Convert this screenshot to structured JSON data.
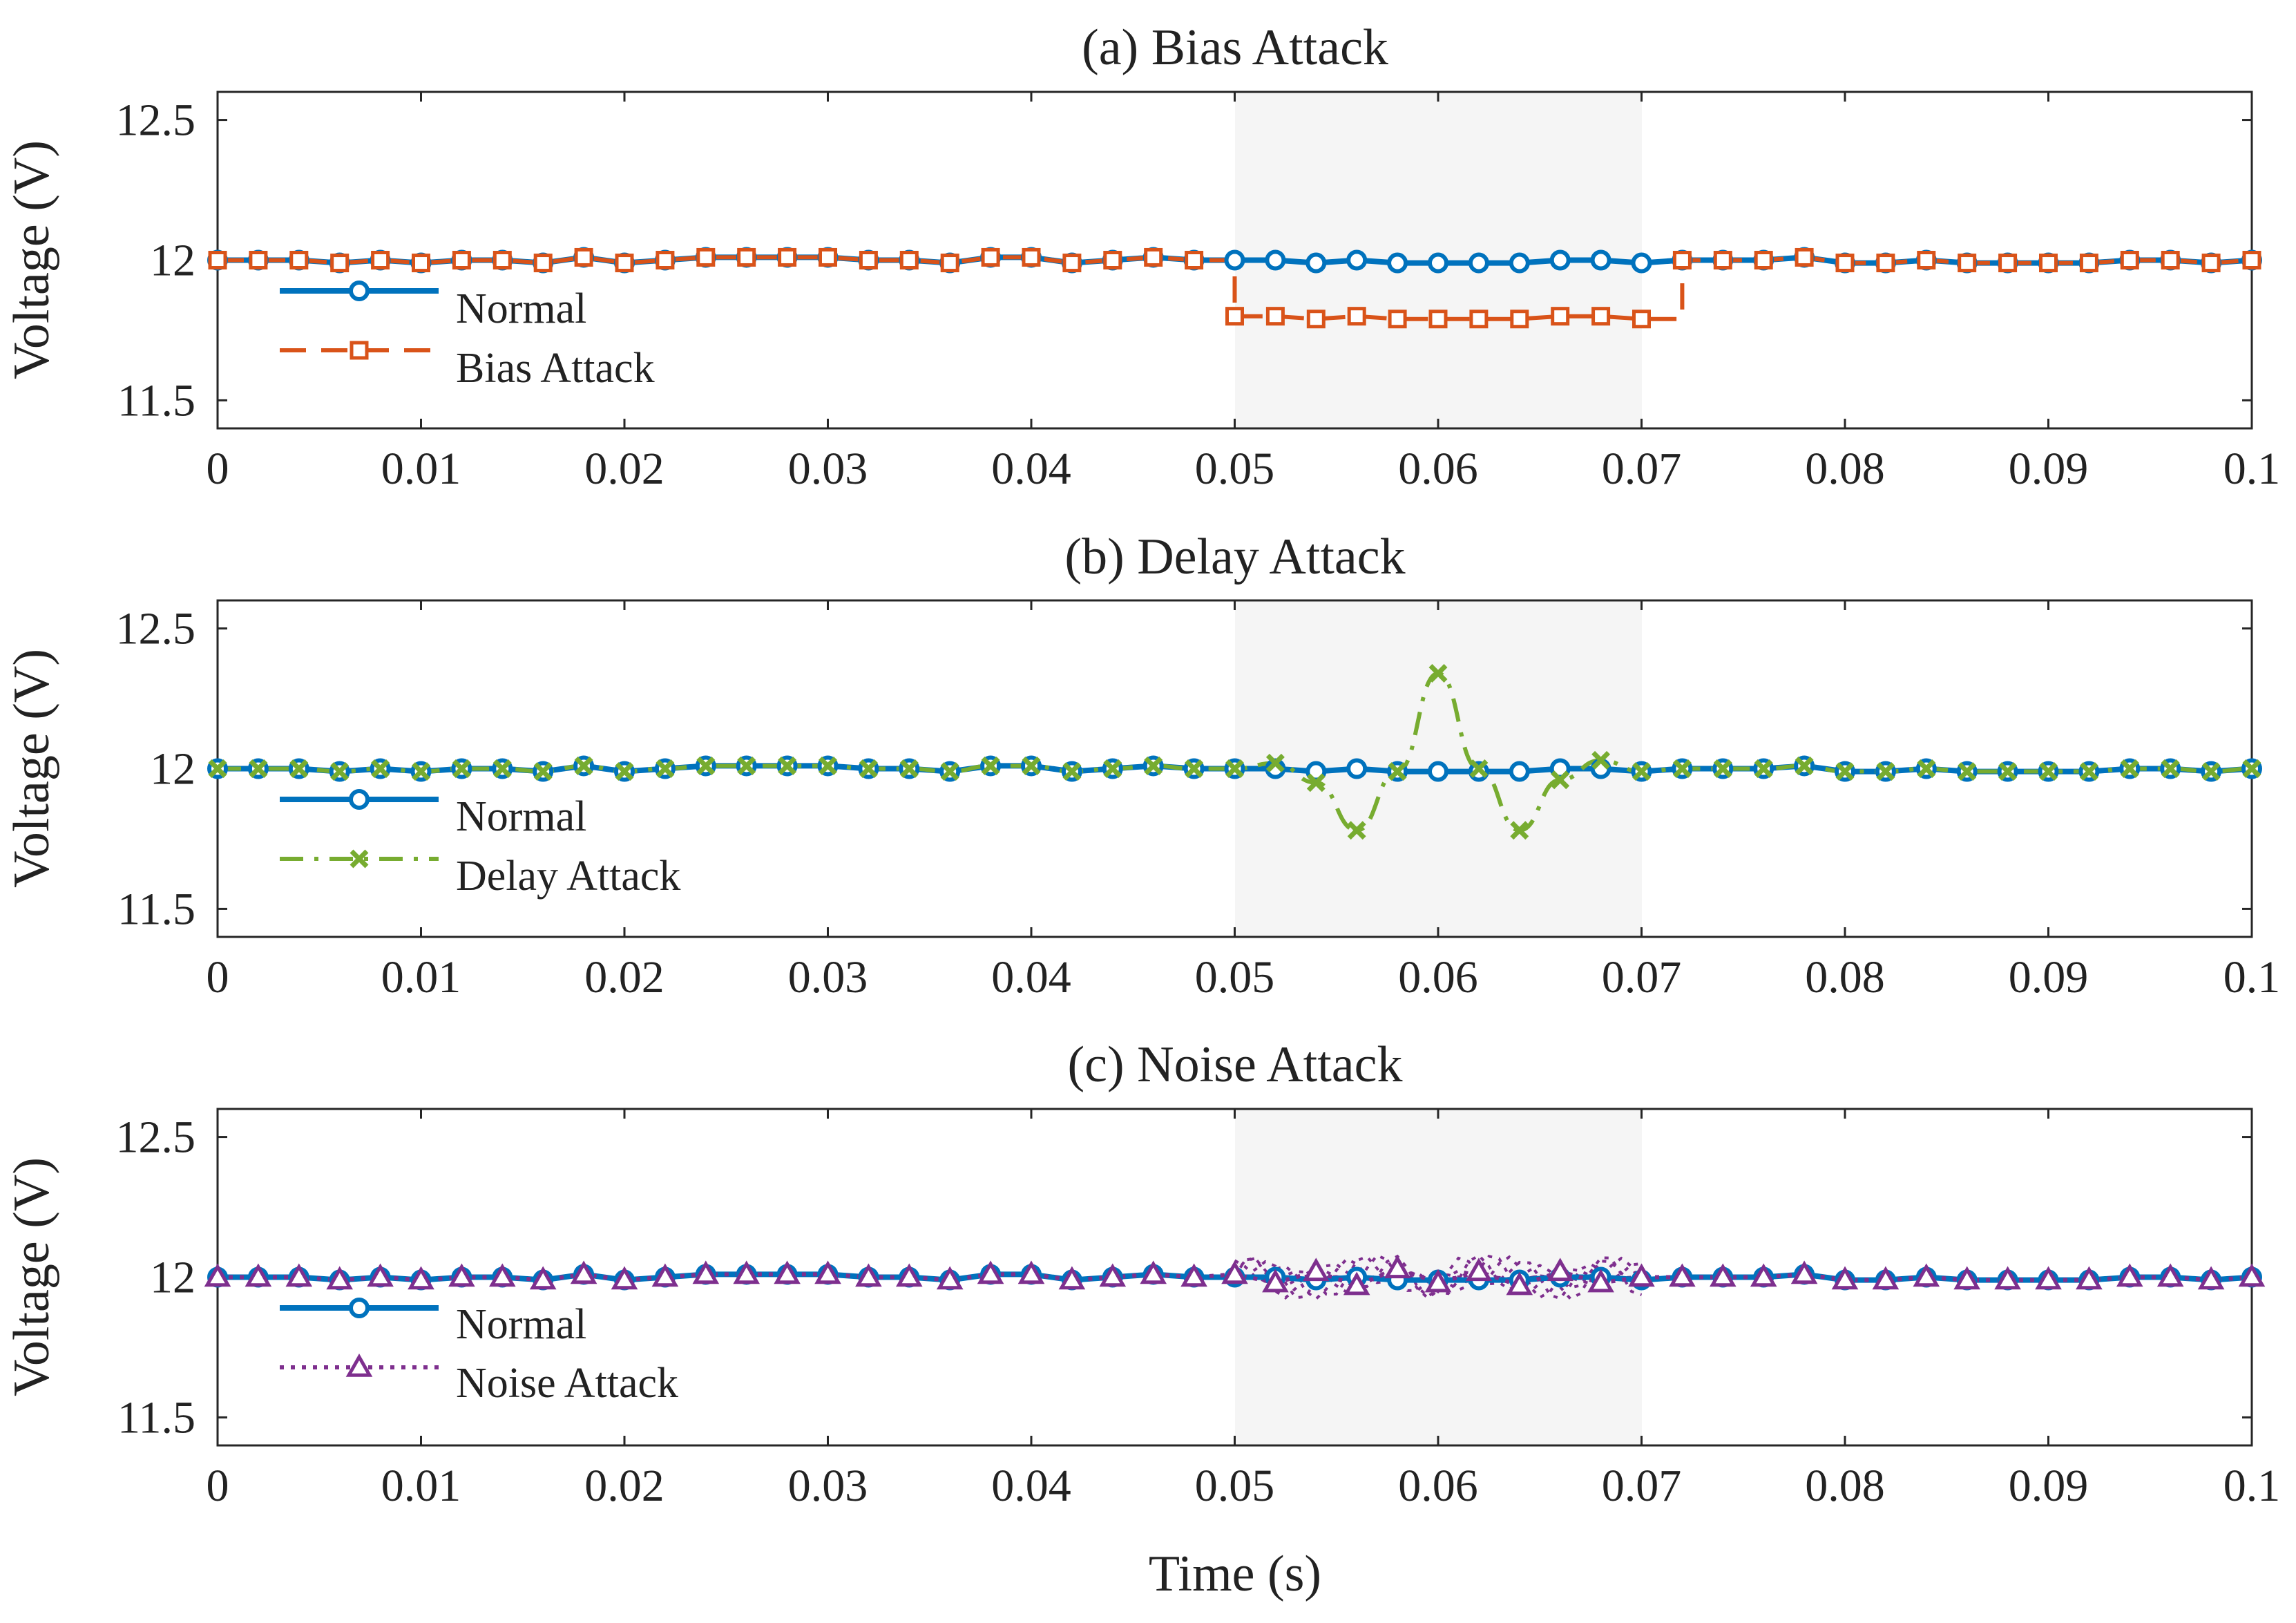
{
  "figure": {
    "xlabel": "Time (s)",
    "ylabel": "Voltage (V)",
    "xticks": [
      "0",
      "0.01",
      "0.02",
      "0.03",
      "0.04",
      "0.05",
      "0.06",
      "0.07",
      "0.08",
      "0.09",
      "0.1"
    ],
    "yticks": [
      "11.5",
      "12",
      "12.5"
    ],
    "attack_window": [
      0.05,
      0.07
    ]
  },
  "chart_data": [
    {
      "type": "line",
      "title": "(a) Bias Attack",
      "xlabel": "",
      "ylabel": "Voltage (V)",
      "xlim": [
        0,
        0.1
      ],
      "ylim": [
        11.4,
        12.6
      ],
      "legend_position": "left",
      "shaded_region": [
        0.05,
        0.07
      ],
      "series": [
        {
          "name": "Normal",
          "color": "#0072BD",
          "line": "solid",
          "marker": "circle",
          "x": [
            0,
            0.002,
            0.004,
            0.006,
            0.008,
            0.01,
            0.012,
            0.014,
            0.016,
            0.018,
            0.02,
            0.022,
            0.024,
            0.026,
            0.028,
            0.03,
            0.032,
            0.034,
            0.036,
            0.038,
            0.04,
            0.042,
            0.044,
            0.046,
            0.048,
            0.05,
            0.052,
            0.054,
            0.056,
            0.058,
            0.06,
            0.062,
            0.064,
            0.066,
            0.068,
            0.07,
            0.072,
            0.074,
            0.076,
            0.078,
            0.08,
            0.082,
            0.084,
            0.086,
            0.088,
            0.09,
            0.092,
            0.094,
            0.096,
            0.098,
            0.1
          ],
          "y": [
            12.0,
            12.0,
            12.0,
            11.99,
            12.0,
            11.99,
            12.0,
            12.0,
            11.99,
            12.01,
            11.99,
            12.0,
            12.01,
            12.01,
            12.01,
            12.01,
            12.0,
            12.0,
            11.99,
            12.01,
            12.01,
            11.99,
            12.0,
            12.01,
            12.0,
            12.0,
            12.0,
            11.99,
            12.0,
            11.99,
            11.99,
            11.99,
            11.99,
            12.0,
            12.0,
            11.99,
            12.0,
            12.0,
            12.0,
            12.01,
            11.99,
            11.99,
            12.0,
            11.99,
            11.99,
            11.99,
            11.99,
            12.0,
            12.0,
            11.99,
            12.0
          ]
        },
        {
          "name": "Bias Attack",
          "color": "#D95319",
          "line": "dashed",
          "marker": "square",
          "x": [
            0,
            0.002,
            0.004,
            0.006,
            0.008,
            0.01,
            0.012,
            0.014,
            0.016,
            0.018,
            0.02,
            0.022,
            0.024,
            0.026,
            0.028,
            0.03,
            0.032,
            0.034,
            0.036,
            0.038,
            0.04,
            0.042,
            0.044,
            0.046,
            0.048,
            0.05,
            0.052,
            0.054,
            0.056,
            0.058,
            0.06,
            0.062,
            0.064,
            0.066,
            0.068,
            0.07,
            0.072,
            0.074,
            0.076,
            0.078,
            0.08,
            0.082,
            0.084,
            0.086,
            0.088,
            0.09,
            0.092,
            0.094,
            0.096,
            0.098,
            0.1
          ],
          "y": [
            12.0,
            12.0,
            12.0,
            11.99,
            12.0,
            11.99,
            12.0,
            12.0,
            11.99,
            12.01,
            11.99,
            12.0,
            12.01,
            12.01,
            12.01,
            12.01,
            12.0,
            12.0,
            11.99,
            12.01,
            12.01,
            11.99,
            12.0,
            12.01,
            12.0,
            11.8,
            11.8,
            11.79,
            11.8,
            11.79,
            11.79,
            11.79,
            11.79,
            11.8,
            11.8,
            11.79,
            12.0,
            12.0,
            12.0,
            12.01,
            11.99,
            11.99,
            12.0,
            11.99,
            11.99,
            11.99,
            11.99,
            12.0,
            12.0,
            11.99,
            12.0
          ]
        }
      ]
    },
    {
      "type": "line",
      "title": "(b) Delay Attack",
      "xlabel": "",
      "ylabel": "Voltage (V)",
      "xlim": [
        0,
        0.1
      ],
      "ylim": [
        11.4,
        12.6
      ],
      "legend_position": "left",
      "shaded_region": [
        0.05,
        0.07
      ],
      "series": [
        {
          "name": "Normal",
          "color": "#0072BD",
          "line": "solid",
          "marker": "circle",
          "x": [
            0,
            0.002,
            0.004,
            0.006,
            0.008,
            0.01,
            0.012,
            0.014,
            0.016,
            0.018,
            0.02,
            0.022,
            0.024,
            0.026,
            0.028,
            0.03,
            0.032,
            0.034,
            0.036,
            0.038,
            0.04,
            0.042,
            0.044,
            0.046,
            0.048,
            0.05,
            0.052,
            0.054,
            0.056,
            0.058,
            0.06,
            0.062,
            0.064,
            0.066,
            0.068,
            0.07,
            0.072,
            0.074,
            0.076,
            0.078,
            0.08,
            0.082,
            0.084,
            0.086,
            0.088,
            0.09,
            0.092,
            0.094,
            0.096,
            0.098,
            0.1
          ],
          "y": [
            12.0,
            12.0,
            12.0,
            11.99,
            12.0,
            11.99,
            12.0,
            12.0,
            11.99,
            12.01,
            11.99,
            12.0,
            12.01,
            12.01,
            12.01,
            12.01,
            12.0,
            12.0,
            11.99,
            12.01,
            12.01,
            11.99,
            12.0,
            12.01,
            12.0,
            12.0,
            12.0,
            11.99,
            12.0,
            11.99,
            11.99,
            11.99,
            11.99,
            12.0,
            12.0,
            11.99,
            12.0,
            12.0,
            12.0,
            12.01,
            11.99,
            11.99,
            12.0,
            11.99,
            11.99,
            11.99,
            11.99,
            12.0,
            12.0,
            11.99,
            12.0
          ]
        },
        {
          "name": "Delay Attack",
          "color": "#77AC30",
          "line": "dashdot",
          "marker": "x",
          "x": [
            0,
            0.002,
            0.004,
            0.006,
            0.008,
            0.01,
            0.012,
            0.014,
            0.016,
            0.018,
            0.02,
            0.022,
            0.024,
            0.026,
            0.028,
            0.03,
            0.032,
            0.034,
            0.036,
            0.038,
            0.04,
            0.042,
            0.044,
            0.046,
            0.048,
            0.05,
            0.052,
            0.054,
            0.056,
            0.058,
            0.06,
            0.062,
            0.064,
            0.066,
            0.068,
            0.07,
            0.072,
            0.074,
            0.076,
            0.078,
            0.08,
            0.082,
            0.084,
            0.086,
            0.088,
            0.09,
            0.092,
            0.094,
            0.096,
            0.098,
            0.1
          ],
          "y": [
            12.0,
            12.0,
            12.0,
            11.99,
            12.0,
            11.99,
            12.0,
            12.0,
            11.99,
            12.01,
            11.99,
            12.0,
            12.01,
            12.01,
            12.01,
            12.01,
            12.0,
            12.0,
            11.99,
            12.01,
            12.01,
            11.99,
            12.0,
            12.01,
            12.0,
            12.0,
            12.02,
            11.95,
            11.78,
            11.99,
            12.34,
            12.0,
            11.78,
            11.96,
            12.03,
            11.99,
            12.0,
            12.0,
            12.0,
            12.01,
            11.99,
            11.99,
            12.0,
            11.99,
            11.99,
            11.99,
            11.99,
            12.0,
            12.0,
            11.99,
            12.0
          ]
        }
      ]
    },
    {
      "type": "line",
      "title": "(c) Noise Attack",
      "xlabel": "Time (s)",
      "ylabel": "Voltage (V)",
      "xlim": [
        0,
        0.1
      ],
      "ylim": [
        11.4,
        12.6
      ],
      "legend_position": "left",
      "shaded_region": [
        0.05,
        0.07
      ],
      "series": [
        {
          "name": "Normal",
          "color": "#0072BD",
          "line": "solid",
          "marker": "circle",
          "x": [
            0,
            0.002,
            0.004,
            0.006,
            0.008,
            0.01,
            0.012,
            0.014,
            0.016,
            0.018,
            0.02,
            0.022,
            0.024,
            0.026,
            0.028,
            0.03,
            0.032,
            0.034,
            0.036,
            0.038,
            0.04,
            0.042,
            0.044,
            0.046,
            0.048,
            0.05,
            0.052,
            0.054,
            0.056,
            0.058,
            0.06,
            0.062,
            0.064,
            0.066,
            0.068,
            0.07,
            0.072,
            0.074,
            0.076,
            0.078,
            0.08,
            0.082,
            0.084,
            0.086,
            0.088,
            0.09,
            0.092,
            0.094,
            0.096,
            0.098,
            0.1
          ],
          "y": [
            12.0,
            12.0,
            12.0,
            11.99,
            12.0,
            11.99,
            12.0,
            12.0,
            11.99,
            12.01,
            11.99,
            12.0,
            12.01,
            12.01,
            12.01,
            12.01,
            12.0,
            12.0,
            11.99,
            12.01,
            12.01,
            11.99,
            12.0,
            12.01,
            12.0,
            12.0,
            12.0,
            11.99,
            12.0,
            11.99,
            11.99,
            11.99,
            11.99,
            12.0,
            12.0,
            11.99,
            12.0,
            12.0,
            12.0,
            12.01,
            11.99,
            11.99,
            12.0,
            11.99,
            11.99,
            11.99,
            11.99,
            12.0,
            12.0,
            11.99,
            12.0
          ]
        },
        {
          "name": "Noise Attack",
          "color": "#7E2F8E",
          "line": "dotted",
          "marker": "triangle",
          "x": [
            0,
            0.002,
            0.004,
            0.006,
            0.008,
            0.01,
            0.012,
            0.014,
            0.016,
            0.018,
            0.02,
            0.022,
            0.024,
            0.026,
            0.028,
            0.03,
            0.032,
            0.034,
            0.036,
            0.038,
            0.04,
            0.042,
            0.044,
            0.046,
            0.048,
            0.05,
            0.052,
            0.054,
            0.056,
            0.058,
            0.06,
            0.062,
            0.064,
            0.066,
            0.068,
            0.07,
            0.072,
            0.074,
            0.076,
            0.078,
            0.08,
            0.082,
            0.084,
            0.086,
            0.088,
            0.09,
            0.092,
            0.094,
            0.096,
            0.098,
            0.1
          ],
          "y": [
            12.0,
            12.0,
            12.0,
            11.99,
            12.0,
            11.99,
            12.0,
            12.0,
            11.99,
            12.01,
            11.99,
            12.0,
            12.01,
            12.01,
            12.01,
            12.01,
            12.0,
            12.0,
            11.99,
            12.01,
            12.01,
            11.99,
            12.0,
            12.01,
            12.0,
            12.01,
            11.98,
            12.02,
            11.97,
            12.03,
            11.98,
            12.02,
            11.97,
            12.02,
            11.98,
            12.0,
            12.0,
            12.0,
            12.0,
            12.01,
            11.99,
            11.99,
            12.0,
            11.99,
            11.99,
            11.99,
            11.99,
            12.0,
            12.0,
            11.99,
            12.0
          ],
          "noise_band": [
            11.92,
            12.08
          ]
        }
      ]
    }
  ]
}
